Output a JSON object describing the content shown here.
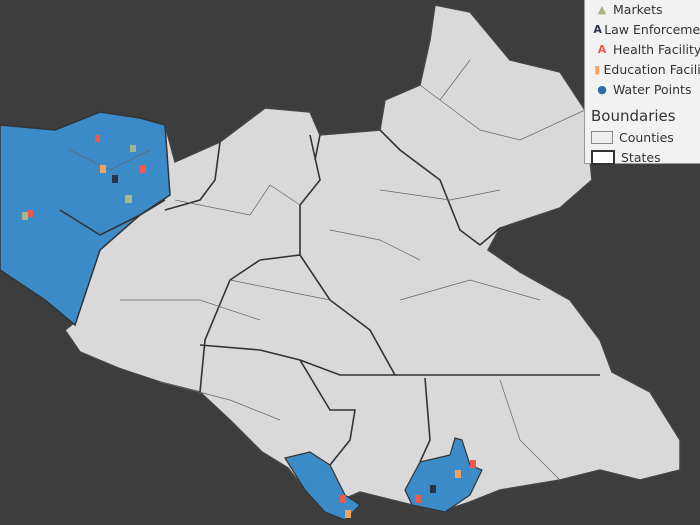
{
  "legend": {
    "items": [
      {
        "label": "Markets",
        "icon": "market-icon",
        "color": "#a8b48c"
      },
      {
        "label": "Law Enforcement",
        "icon": "law-enforcement-icon",
        "color": "#2b3348"
      },
      {
        "label": "Health Facility",
        "icon": "health-facility-icon",
        "color": "#f05a4a"
      },
      {
        "label": "Education Facility",
        "icon": "education-facility-icon",
        "color": "#f4a460"
      },
      {
        "label": "Water Points",
        "icon": "water-point-icon",
        "color": "#2b6ea8"
      }
    ],
    "boundaries_title": "Boundaries",
    "counties_label": "Counties",
    "states_label": "States"
  },
  "colors": {
    "background": "#3d3d3d",
    "country": "#d9d9d9",
    "highlight": "#3a8bc8",
    "border": "#333333"
  }
}
